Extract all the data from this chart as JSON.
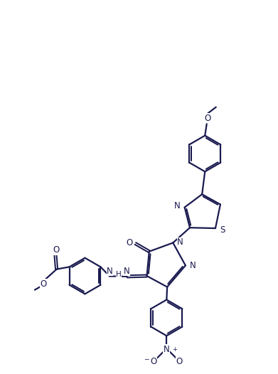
{
  "bg_color": "#ffffff",
  "line_color": "#1a1a50",
  "lw": 1.6,
  "figsize": [
    3.91,
    5.26
  ],
  "dpi": 100,
  "xlim": [
    0,
    9.5
  ],
  "ylim": [
    0,
    12.8
  ]
}
